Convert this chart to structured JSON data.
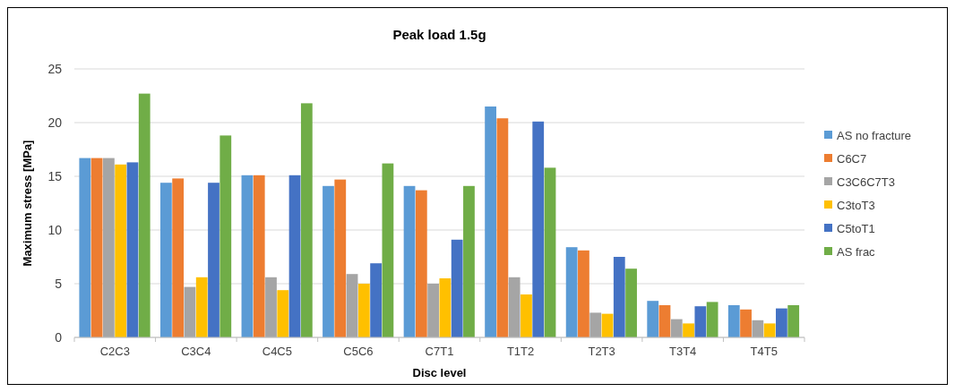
{
  "chart_data": {
    "type": "bar",
    "title": "Peak load 1.5g",
    "xlabel": "Disc level",
    "ylabel": "Maximum stress [MPa]",
    "categories": [
      "C2C3",
      "C3C4",
      "C4C5",
      "C5C6",
      "C7T1",
      "T1T2",
      "T2T3",
      "T3T4",
      "T4T5"
    ],
    "series": [
      {
        "name": "AS no fracture",
        "color": "#5b9bd5",
        "values": [
          16.7,
          14.4,
          15.1,
          14.1,
          14.1,
          21.5,
          8.4,
          3.4,
          3.0
        ]
      },
      {
        "name": "C6C7",
        "color": "#ed7d31",
        "values": [
          16.7,
          14.8,
          15.1,
          14.7,
          13.7,
          20.4,
          8.1,
          3.0,
          2.6
        ]
      },
      {
        "name": "C3C6C7T3",
        "color": "#a5a5a5",
        "values": [
          16.7,
          4.7,
          5.6,
          5.9,
          5.0,
          5.6,
          2.3,
          1.7,
          1.6
        ]
      },
      {
        "name": "C3toT3",
        "color": "#ffc000",
        "values": [
          16.1,
          5.6,
          4.4,
          5.0,
          5.5,
          4.0,
          2.2,
          1.3,
          1.3
        ]
      },
      {
        "name": "C5toT1",
        "color": "#4472c4",
        "values": [
          16.3,
          14.4,
          15.1,
          6.9,
          9.1,
          20.1,
          7.5,
          2.9,
          2.7
        ]
      },
      {
        "name": "AS frac",
        "color": "#70ad47",
        "values": [
          22.7,
          18.8,
          21.8,
          16.2,
          14.1,
          15.8,
          6.4,
          3.3,
          3.0
        ]
      }
    ],
    "ylim": [
      0,
      25
    ],
    "yticks": [
      0,
      5,
      10,
      15,
      20,
      25
    ],
    "grid": "y",
    "legend": "right"
  }
}
